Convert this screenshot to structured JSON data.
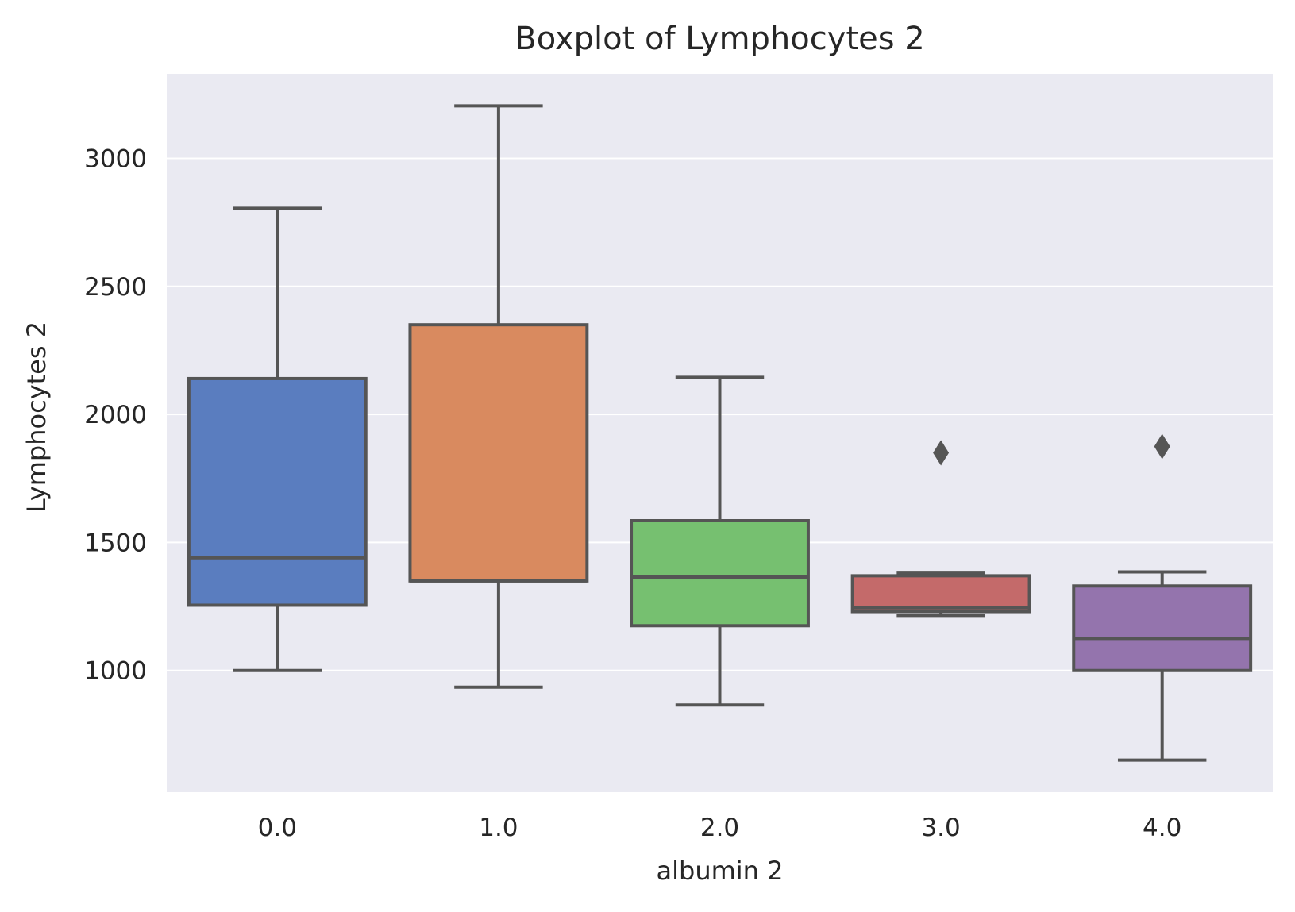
{
  "chart_data": {
    "type": "boxplot",
    "title": "Boxplot of Lymphocytes 2",
    "xlabel": "albumin 2",
    "ylabel": "Lymphocytes 2",
    "categories": [
      "0.0",
      "1.0",
      "2.0",
      "3.0",
      "4.0"
    ],
    "yticks": [
      1000,
      1500,
      2000,
      2500,
      3000
    ],
    "ylim": [
      525,
      3330
    ],
    "grid": true,
    "background": "#eaeaf2",
    "edge_color": "#555555",
    "boxes": [
      {
        "category": "0.0",
        "whisker_low": 1000,
        "q1": 1255,
        "median": 1440,
        "q3": 2140,
        "whisker_high": 2805,
        "outliers": [],
        "color": "#5a7dbf"
      },
      {
        "category": "1.0",
        "whisker_low": 935,
        "q1": 1350,
        "median": 1350,
        "q3": 2350,
        "whisker_high": 3205,
        "outliers": [],
        "color": "#d98a5f"
      },
      {
        "category": "2.0",
        "whisker_low": 865,
        "q1": 1175,
        "median": 1365,
        "q3": 1585,
        "whisker_high": 2145,
        "outliers": [],
        "color": "#76c070"
      },
      {
        "category": "3.0",
        "whisker_low": 1215,
        "q1": 1230,
        "median": 1245,
        "q3": 1370,
        "whisker_high": 1380,
        "outliers": [
          1850
        ],
        "color": "#c46a6a"
      },
      {
        "category": "4.0",
        "whisker_low": 650,
        "q1": 1000,
        "median": 1125,
        "q3": 1330,
        "whisker_high": 1385,
        "outliers": [
          1875
        ],
        "color": "#9474ad"
      }
    ]
  }
}
